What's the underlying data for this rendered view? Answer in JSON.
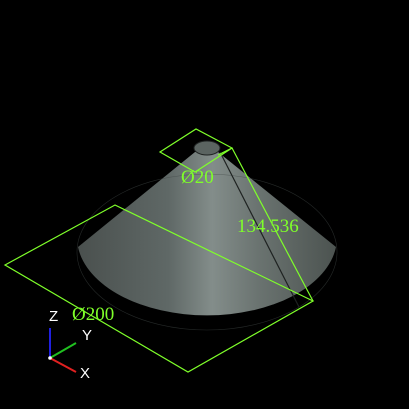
{
  "view": {
    "background": "#000000",
    "part_colors": {
      "body_dark": "#4f5654",
      "body_light": "#7d8784",
      "cylinder_top": "#5e6764",
      "edge_line": "#1e2221"
    },
    "dimension_color": "#7fff2a"
  },
  "dimensions": {
    "top_diameter": "Ø20",
    "base_diameter": "Ø200",
    "slant_length": "134.536"
  },
  "axes": {
    "x_label": "X",
    "y_label": "Y",
    "z_label": "Z",
    "x_color": "#e02020",
    "y_color": "#20c020",
    "z_color": "#2020e0"
  }
}
